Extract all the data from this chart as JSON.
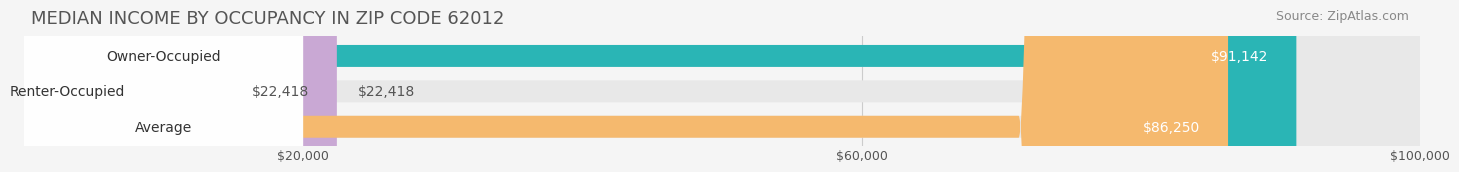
{
  "title": "MEDIAN INCOME BY OCCUPANCY IN ZIP CODE 62012",
  "source": "Source: ZipAtlas.com",
  "categories": [
    "Owner-Occupied",
    "Renter-Occupied",
    "Average"
  ],
  "values": [
    91142,
    22418,
    86250
  ],
  "bar_colors": [
    "#2ab5b5",
    "#c9a8d4",
    "#f5b96e"
  ],
  "bar_labels": [
    "$91,142",
    "$22,418",
    "$86,250"
  ],
  "xlim": [
    0,
    100000
  ],
  "xticks": [
    0,
    20000,
    60000,
    100000
  ],
  "xticklabels": [
    "",
    "$20,000",
    "$60,000",
    "$100,000"
  ],
  "background_color": "#f5f5f5",
  "bar_bg_color": "#e8e8e8",
  "title_fontsize": 13,
  "source_fontsize": 9,
  "label_fontsize": 10,
  "bar_height": 0.62,
  "bar_gap": 0.38
}
